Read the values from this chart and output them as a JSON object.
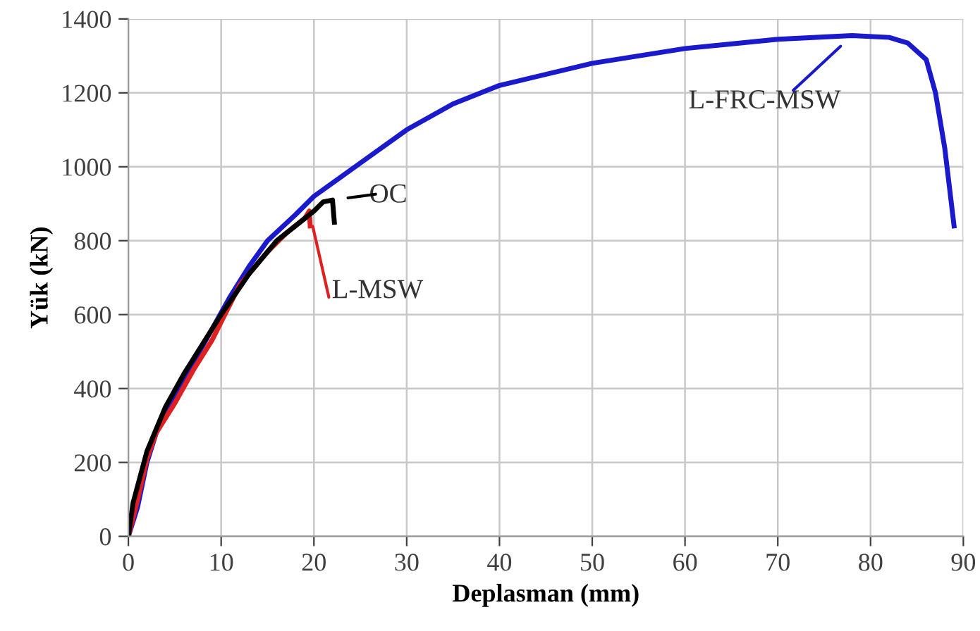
{
  "chart_data": {
    "type": "line",
    "xlabel": "Deplasman (mm)",
    "ylabel": "Yük (kN)",
    "xlim": [
      0,
      90
    ],
    "ylim": [
      0,
      1400
    ],
    "xticks": [
      0,
      10,
      20,
      30,
      40,
      50,
      60,
      70,
      80,
      90
    ],
    "yticks": [
      0,
      200,
      400,
      600,
      800,
      1000,
      1200,
      1400
    ],
    "grid": true,
    "marker": "none",
    "line_style": "solid",
    "series": [
      {
        "name": "L-FRC-MSW",
        "color": "#1a1acc",
        "x": [
          0,
          1,
          2,
          3,
          5,
          7,
          9,
          11,
          13,
          15,
          18,
          20,
          25,
          30,
          35,
          40,
          50,
          60,
          70,
          78,
          82,
          84,
          86,
          87,
          88,
          89
        ],
        "values": [
          0,
          80,
          200,
          280,
          380,
          470,
          560,
          650,
          730,
          800,
          870,
          920,
          1010,
          1100,
          1170,
          1220,
          1280,
          1320,
          1345,
          1355,
          1350,
          1335,
          1290,
          1200,
          1050,
          840
        ]
      },
      {
        "name": "L-MSW",
        "color": "#e02020",
        "x": [
          0,
          1,
          2,
          3,
          5,
          7,
          9,
          12,
          15,
          17,
          19,
          19.5,
          19.6
        ],
        "values": [
          0,
          100,
          210,
          280,
          360,
          450,
          530,
          680,
          770,
          820,
          860,
          880,
          840
        ]
      },
      {
        "name": "OC",
        "color": "#000000",
        "x": [
          0,
          0.5,
          2,
          4,
          6,
          8,
          10,
          13,
          16,
          18,
          20,
          21,
          22,
          22.2
        ],
        "values": [
          0,
          90,
          230,
          350,
          440,
          520,
          600,
          710,
          800,
          840,
          880,
          905,
          910,
          850
        ]
      }
    ]
  }
}
